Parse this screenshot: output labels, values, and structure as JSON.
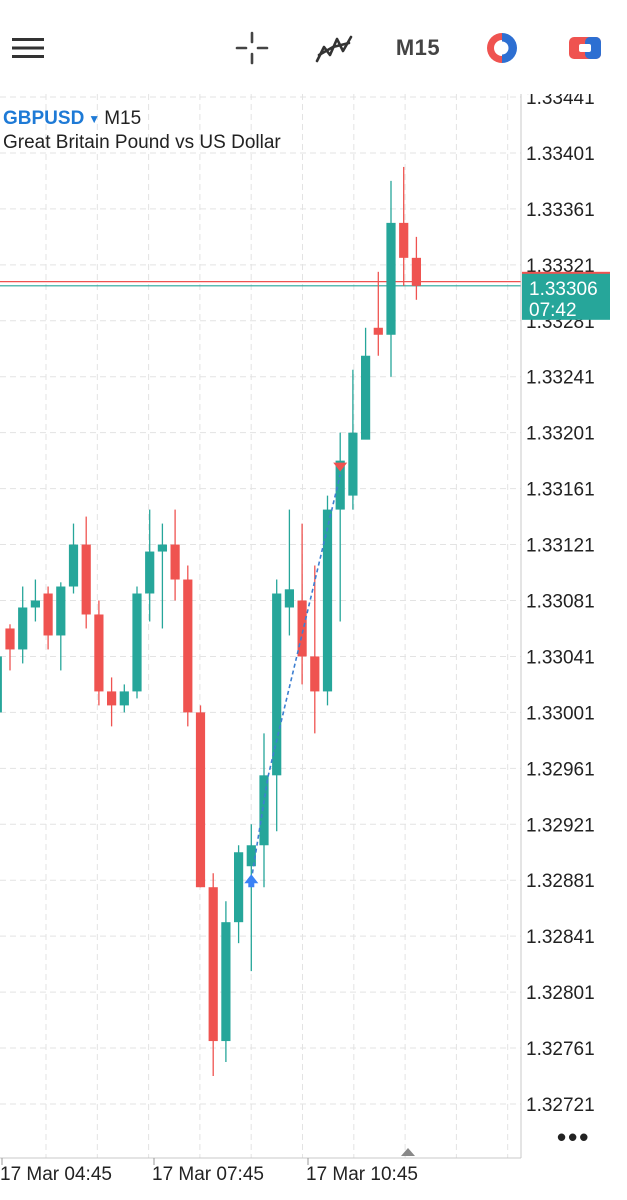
{
  "toolbar": {
    "menu_icon": "hamburger-menu-icon",
    "crosshair_icon": "crosshair-icon",
    "indicators_icon": "indicators-icon",
    "timeframe": "M15",
    "chart_type_icon": "trade-icon",
    "trade_icon": "one-click-trading-icon"
  },
  "header": {
    "symbol": "GBPUSD",
    "timeframe": "M15",
    "description": "Great Britain Pound vs US Dollar"
  },
  "price_axis": {
    "labels": [
      "1.33441",
      "1.33401",
      "1.33361",
      "1.33321",
      "1.33281",
      "1.33241",
      "1.33201",
      "1.33161",
      "1.33121",
      "1.33081",
      "1.33041",
      "1.33001",
      "1.32961",
      "1.32921",
      "1.32881",
      "1.32841",
      "1.32801",
      "1.32761",
      "1.32721"
    ]
  },
  "time_axis": {
    "labels": [
      "17 Mar 04:45",
      "17 Mar 07:45",
      "17 Mar 10:45"
    ]
  },
  "current_price": {
    "bid": "1.33306",
    "countdown": "07:42",
    "ask": 1.33309
  },
  "colors": {
    "bull": "#26a69a",
    "bear": "#ef5350",
    "grid": "#e3e3e3",
    "accent": "#1e7ad6",
    "trade_line": "#3d7fd1"
  },
  "chart_data": {
    "type": "candlestick",
    "title": "GBPUSD, M15",
    "ylim": [
      1.32711,
      1.33451
    ],
    "candles": [
      {
        "o": 1.33001,
        "h": 1.33051,
        "l": 1.32991,
        "c": 1.33041
      },
      {
        "o": 1.33061,
        "h": 1.33064,
        "l": 1.33031,
        "c": 1.33046
      },
      {
        "o": 1.33046,
        "h": 1.33091,
        "l": 1.33036,
        "c": 1.33076
      },
      {
        "o": 1.33076,
        "h": 1.33096,
        "l": 1.33066,
        "c": 1.33081
      },
      {
        "o": 1.33086,
        "h": 1.33091,
        "l": 1.33046,
        "c": 1.33056
      },
      {
        "o": 1.33056,
        "h": 1.33094,
        "l": 1.33031,
        "c": 1.33091
      },
      {
        "o": 1.33091,
        "h": 1.33136,
        "l": 1.33086,
        "c": 1.33121
      },
      {
        "o": 1.33121,
        "h": 1.33141,
        "l": 1.33061,
        "c": 1.33071
      },
      {
        "o": 1.33071,
        "h": 1.33081,
        "l": 1.33006,
        "c": 1.33016
      },
      {
        "o": 1.33016,
        "h": 1.33026,
        "l": 1.32991,
        "c": 1.33006
      },
      {
        "o": 1.33006,
        "h": 1.33021,
        "l": 1.33001,
        "c": 1.33016
      },
      {
        "o": 1.33016,
        "h": 1.33091,
        "l": 1.33011,
        "c": 1.33086
      },
      {
        "o": 1.33086,
        "h": 1.33146,
        "l": 1.33066,
        "c": 1.33116
      },
      {
        "o": 1.33116,
        "h": 1.33136,
        "l": 1.33061,
        "c": 1.33121
      },
      {
        "o": 1.33121,
        "h": 1.33146,
        "l": 1.33081,
        "c": 1.33096
      },
      {
        "o": 1.33096,
        "h": 1.33106,
        "l": 1.32991,
        "c": 1.33001
      },
      {
        "o": 1.33001,
        "h": 1.33006,
        "l": 1.32876,
        "c": 1.32876
      },
      {
        "o": 1.32876,
        "h": 1.32886,
        "l": 1.32741,
        "c": 1.32766
      },
      {
        "o": 1.32766,
        "h": 1.32866,
        "l": 1.32751,
        "c": 1.32851
      },
      {
        "o": 1.32851,
        "h": 1.32906,
        "l": 1.32836,
        "c": 1.32901
      },
      {
        "o": 1.32891,
        "h": 1.32921,
        "l": 1.32816,
        "c": 1.32906
      },
      {
        "o": 1.32906,
        "h": 1.32986,
        "l": 1.32876,
        "c": 1.32956
      },
      {
        "o": 1.32956,
        "h": 1.33096,
        "l": 1.32916,
        "c": 1.33086
      },
      {
        "o": 1.33076,
        "h": 1.33146,
        "l": 1.33056,
        "c": 1.33089
      },
      {
        "o": 1.33081,
        "h": 1.33136,
        "l": 1.33021,
        "c": 1.33041
      },
      {
        "o": 1.33041,
        "h": 1.33106,
        "l": 1.32986,
        "c": 1.33016
      },
      {
        "o": 1.33016,
        "h": 1.33156,
        "l": 1.33006,
        "c": 1.33146
      },
      {
        "o": 1.33146,
        "h": 1.33201,
        "l": 1.33066,
        "c": 1.33181
      },
      {
        "o": 1.33156,
        "h": 1.33246,
        "l": 1.33146,
        "c": 1.33201
      },
      {
        "o": 1.33196,
        "h": 1.33276,
        "l": 1.33201,
        "c": 1.33256
      },
      {
        "o": 1.33276,
        "h": 1.33316,
        "l": 1.33256,
        "c": 1.33271
      },
      {
        "o": 1.33271,
        "h": 1.33381,
        "l": 1.33241,
        "c": 1.33351
      },
      {
        "o": 1.33351,
        "h": 1.33391,
        "l": 1.33306,
        "c": 1.33326
      },
      {
        "o": 1.33326,
        "h": 1.33341,
        "l": 1.33296,
        "c": 1.33306
      }
    ],
    "trade": {
      "buy": {
        "candle": 20,
        "price": 1.32881
      },
      "sell": {
        "candle": 27,
        "price": 1.33171
      },
      "via": {
        "candle": 21,
        "price": 1.32955
      }
    }
  }
}
